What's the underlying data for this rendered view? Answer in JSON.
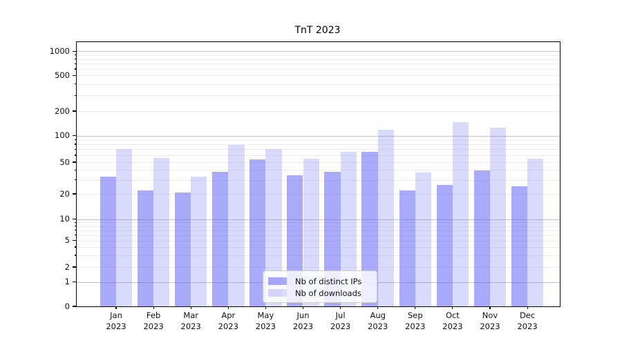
{
  "title": "TnT 2023",
  "year_line": "2023",
  "months": [
    "Jan",
    "Feb",
    "Mar",
    "Apr",
    "May",
    "Jun",
    "Jul",
    "Aug",
    "Sep",
    "Oct",
    "Nov",
    "Dec"
  ],
  "legend": {
    "items": [
      "Nb of distinct IPs",
      "Nb of downloads"
    ]
  },
  "colors": {
    "ips_bar": "rgba(100,100,245,0.55)",
    "downloads_bar": "rgba(100,100,245,0.24)",
    "major_grid": "#c3c3c3",
    "minor_grid": "#ececec",
    "axis": "#000000"
  },
  "y_axis": {
    "tick_labels": [
      "0",
      "1",
      "2",
      "5",
      "10",
      "20",
      "50",
      "100",
      "200",
      "500",
      "1000"
    ]
  },
  "chart_data": {
    "type": "bar",
    "title": "TnT 2023",
    "categories": [
      "Jan 2023",
      "Feb 2023",
      "Mar 2023",
      "Apr 2023",
      "May 2023",
      "Jun 2023",
      "Jul 2023",
      "Aug 2023",
      "Sep 2023",
      "Oct 2023",
      "Nov 2023",
      "Dec 2023"
    ],
    "series": [
      {
        "name": "Nb of distinct IPs",
        "values": [
          33,
          22,
          21,
          38,
          54,
          34,
          38,
          66,
          22,
          26,
          39,
          25
        ]
      },
      {
        "name": "Nb of downloads",
        "values": [
          70,
          56,
          33,
          79,
          71,
          55,
          66,
          118,
          37,
          148,
          126,
          55
        ]
      }
    ],
    "yscale": "asinh (log-like, includes 0)",
    "y_ticks": [
      0,
      1,
      2,
      5,
      10,
      20,
      50,
      100,
      200,
      500,
      1000
    ],
    "ylim": [
      0,
      1286
    ],
    "grid": "horizontal major (decades) + minor",
    "legend_position": "lower center"
  }
}
